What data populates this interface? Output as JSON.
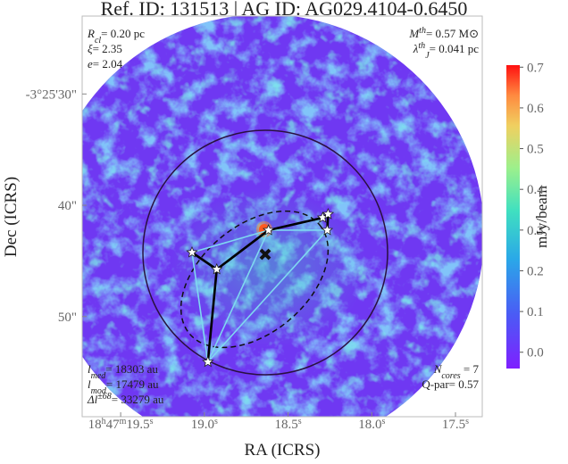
{
  "chart_data": {
    "type": "image",
    "title": "Ref. ID: 131513 | AG ID: AG029.4104-0.6450",
    "x_label": "RA (ICRS)",
    "y_label": "Dec (ICRS)",
    "xlim": [
      19.73,
      17.34
    ],
    "ylim": [
      23.0,
      59.0
    ],
    "xticks": [
      {
        "value": 19.5,
        "label": "18h47m19.5s"
      },
      {
        "value": 19.0,
        "label": "19.0s"
      },
      {
        "value": 18.5,
        "label": "18.5s"
      },
      {
        "value": 18.0,
        "label": "18.0s"
      },
      {
        "value": 17.5,
        "label": "17.5s"
      }
    ],
    "yticks": [
      {
        "value": 30,
        "label": "-3°25'30\""
      },
      {
        "value": 40,
        "label": "40\""
      },
      {
        "value": 50,
        "label": "50\""
      }
    ],
    "colorbar": {
      "label": "mJy/beam",
      "clim": [
        -0.04,
        0.705
      ],
      "ticks": [
        {
          "value": 0.0,
          "label": "0.0"
        },
        0.1,
        0.2,
        0.3,
        0.4,
        0.5,
        0.6,
        0.7
      ]
    },
    "cores": {
      "ra": [
        18.617,
        18.293,
        18.261,
        18.266,
        19.074,
        18.926,
        18.979
      ],
      "dec": [
        42.24,
        41.12,
        40.8,
        42.24,
        44.24,
        45.76,
        54.08
      ]
    },
    "mst_edges": [
      [
        4,
        5
      ],
      [
        5,
        0
      ],
      [
        5,
        6
      ],
      [
        0,
        1
      ],
      [
        1,
        2
      ],
      [
        2,
        3
      ]
    ],
    "graph_edges": [
      [
        4,
        0
      ],
      [
        4,
        6
      ],
      [
        0,
        3
      ],
      [
        6,
        3
      ],
      [
        6,
        0
      ]
    ],
    "annotations": {
      "top_left": [
        [
          "R",
          {
            "sub": "cl"
          },
          "= 0.20 pc"
        ],
        [
          "ξ",
          "= 2.35"
        ],
        [
          "e",
          "= 2.04"
        ]
      ],
      "top_right": [
        [
          "M",
          {
            "sup": "th"
          },
          "= 0.57 M⊙"
        ],
        [
          "λ",
          {
            "sup": "th"
          },
          {
            "sub": "J"
          },
          "= 0.041 pc"
        ]
      ],
      "bottom_left": [
        [
          "l",
          {
            "sub": "med"
          },
          "= 18303 au"
        ],
        [
          "l",
          {
            "sub": "mod"
          },
          "= 17479 au"
        ],
        [
          "Δl",
          {
            "sup": "±68"
          },
          "= 33279 au"
        ]
      ],
      "bottom_right": [
        [
          "N",
          {
            "sub": "cores"
          },
          " = 7"
        ],
        [
          "Q-par= 0.57"
        ]
      ]
    }
  }
}
